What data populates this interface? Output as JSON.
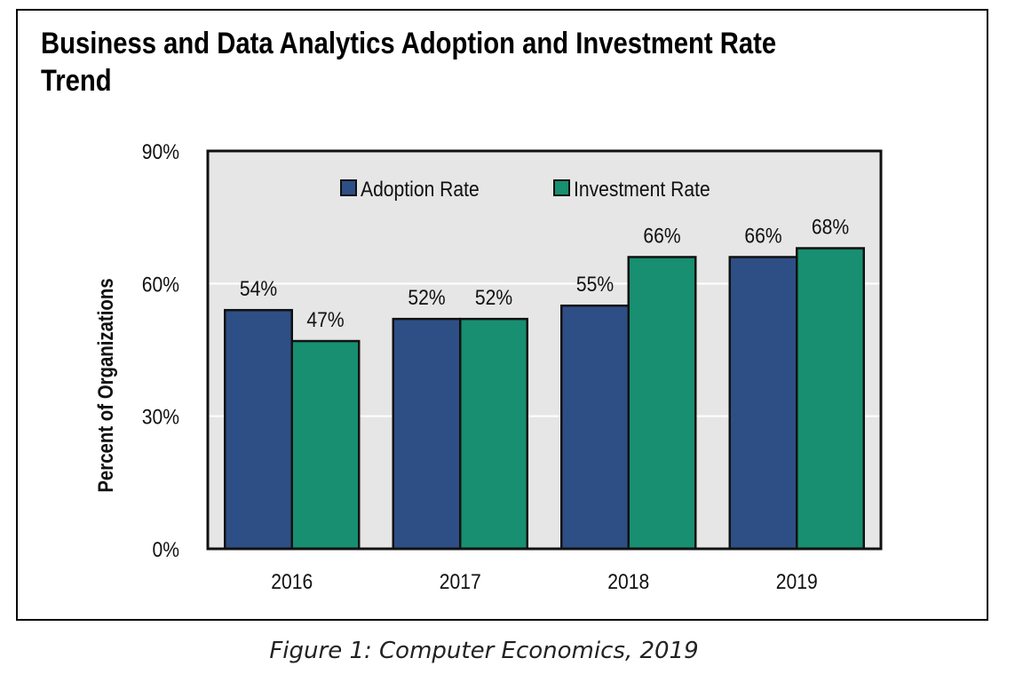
{
  "chart_data": {
    "type": "bar",
    "title": "Business and Data Analytics Adoption and Investment Rate Trend",
    "categories": [
      "2016",
      "2017",
      "2018",
      "2019"
    ],
    "series": [
      {
        "name": "Adoption Rate",
        "values": [
          54,
          52,
          55,
          66
        ],
        "labels": [
          "54%",
          "52%",
          "55%",
          "66%"
        ],
        "color": "#2e4f86"
      },
      {
        "name": "Investment Rate",
        "values": [
          47,
          52,
          66,
          68
        ],
        "labels": [
          "47%",
          "52%",
          "66%",
          "68%"
        ],
        "color": "#178f70"
      }
    ],
    "xlabel": "",
    "ylabel": "Percent of Organizations",
    "ylim": [
      0,
      90
    ],
    "yticks": [
      "0%",
      "30%",
      "60%",
      "90%"
    ],
    "ytick_values": [
      0,
      30,
      60,
      90
    ],
    "grid": true,
    "legend": "top",
    "background": "#e6e6e6"
  },
  "caption": "Figure 1: Computer Economics, 2019"
}
